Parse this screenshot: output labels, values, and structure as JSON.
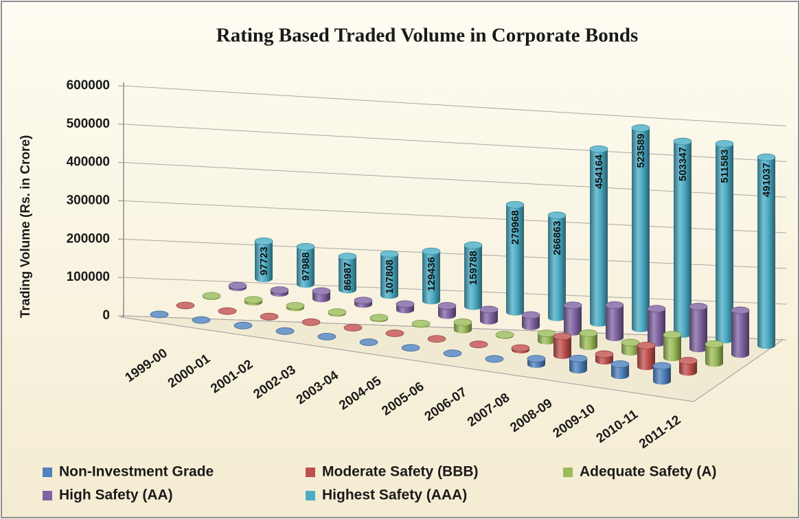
{
  "chart_data": {
    "type": "bar3d",
    "title": "Rating Based Traded Volume in Corporate Bonds",
    "y_label": "Trading Volume (Rs. in Crore)",
    "categories": [
      "1999-00",
      "2000-01",
      "2001-02",
      "2002-03",
      "2003-04",
      "2004-05",
      "2005-06",
      "2006-07",
      "2007-08",
      "2008-09",
      "2009-10",
      "2010-11",
      "2011-12"
    ],
    "series": [
      {
        "name": "Non-Investment Grade",
        "color": "#4f81bd",
        "values": [
          0,
          0,
          0,
          0,
          0,
          0,
          0,
          0,
          0,
          15000,
          30000,
          30000,
          40000
        ]
      },
      {
        "name": "Moderate Safety (BBB)",
        "color": "#c0504d",
        "values": [
          0,
          0,
          0,
          0,
          0,
          0,
          0,
          0,
          5000,
          50000,
          18000,
          55000,
          30000
        ]
      },
      {
        "name": "Adequate Safety (A)",
        "color": "#9bbb59",
        "values": [
          2000,
          6000,
          5000,
          3000,
          3000,
          2000,
          20000,
          2000,
          20000,
          35000,
          25000,
          60000,
          50000
        ]
      },
      {
        "name": "High Safety (AA)",
        "color": "#8064a2",
        "values": [
          5000,
          8000,
          20000,
          10000,
          15000,
          25000,
          30000,
          30000,
          70000,
          85000,
          90000,
          110000,
          115000
        ]
      },
      {
        "name": "Highest Safety (AAA)",
        "color": "#4bacc6",
        "data_labels": true,
        "values": [
          97723,
          97988,
          86987,
          107808,
          129436,
          159788,
          279968,
          266863,
          454164,
          523589,
          503347,
          511583,
          491037
        ]
      }
    ],
    "ylim": [
      0,
      600000
    ],
    "yticks": [
      0,
      100000,
      200000,
      300000,
      400000,
      500000,
      600000
    ],
    "grid": true,
    "legend": "bottom"
  }
}
